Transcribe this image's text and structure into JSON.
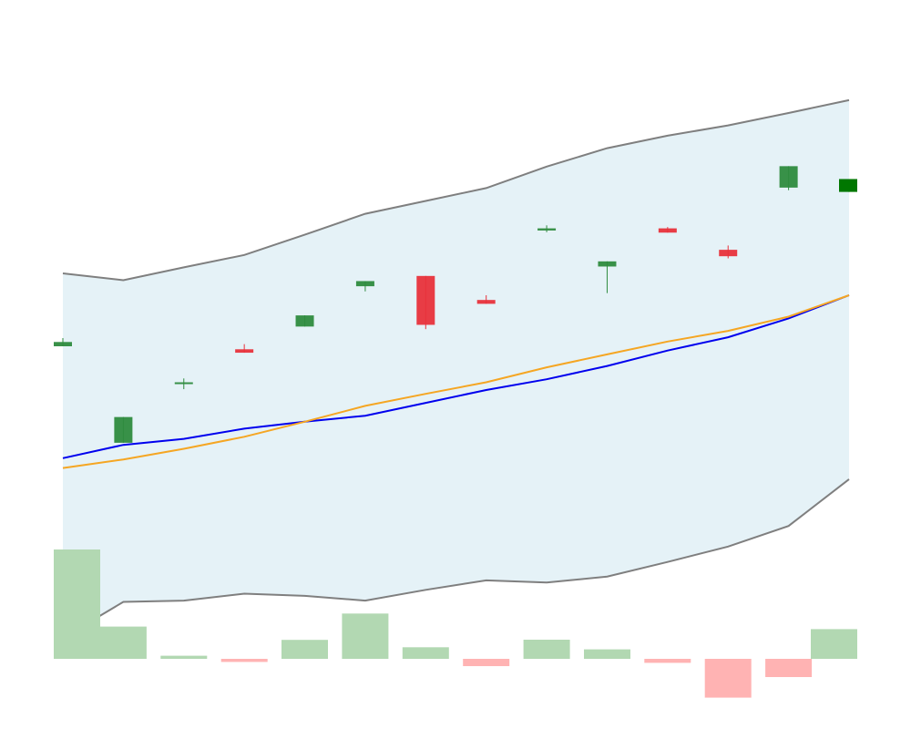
{
  "chart_data": [
    {
      "type": "candlestick",
      "title": "",
      "xlabel": "",
      "ylabel": "",
      "grid": false,
      "legend": "none",
      "x": [
        1,
        2,
        3,
        4,
        5,
        6,
        7,
        8,
        9,
        10,
        11,
        12,
        13,
        14
      ],
      "ylim": [
        15.5,
        100.5
      ],
      "candles": [
        {
          "open": 58.0,
          "high": 59.9,
          "close": 59.0,
          "low": 58.0
        },
        {
          "open": 35.5,
          "high": 41.5,
          "close": 41.5,
          "low": 35.5
        },
        {
          "open": 49.4,
          "high": 50.5,
          "close": 49.6,
          "low": 48.0
        },
        {
          "open": 57.3,
          "high": 58.5,
          "close": 56.5,
          "low": 56.5
        },
        {
          "open": 62.6,
          "high": 65.2,
          "close": 65.2,
          "low": 62.6
        },
        {
          "open": 72.0,
          "high": 73.2,
          "close": 73.2,
          "low": 70.8
        },
        {
          "open": 74.4,
          "high": 74.4,
          "close": 63.0,
          "low": 62.0
        },
        {
          "open": 68.8,
          "high": 69.9,
          "close": 67.9,
          "low": 67.9
        },
        {
          "open": 85.0,
          "high": 86.2,
          "close": 85.5,
          "low": 84.6
        },
        {
          "open": 76.6,
          "high": 77.8,
          "close": 77.8,
          "low": 70.4
        },
        {
          "open": 85.5,
          "high": 85.8,
          "close": 84.5,
          "low": 84.5
        },
        {
          "open": 80.5,
          "high": 81.5,
          "close": 79.0,
          "low": 78.5
        },
        {
          "open": 95.0,
          "high": 100.0,
          "close": 100.0,
          "low": 94.4
        },
        {
          "open": 94.0,
          "high": 97.0,
          "close": 97.0,
          "low": 94.0
        }
      ],
      "bands": {
        "upper": [
          75.0,
          73.4,
          76.4,
          79.3,
          84.0,
          88.9,
          91.9,
          94.9,
          99.9,
          104.2,
          107.1,
          109.5,
          112.4,
          115.4
        ],
        "lower": [
          -10.0,
          -1.6,
          -1.3,
          0.3,
          -0.2,
          -1.3,
          1.2,
          3.4,
          2.9,
          4.3,
          7.7,
          11.3,
          16.1,
          27.0
        ]
      },
      "series": [
        {
          "color": "#0000ee",
          "values": [
            31.9,
            35.0,
            36.4,
            38.8,
            40.4,
            41.8,
            44.8,
            47.8,
            50.3,
            53.4,
            57.0,
            60.1,
            64.5,
            69.9
          ]
        },
        {
          "color": "#f5a623",
          "values": [
            29.6,
            31.6,
            34.1,
            36.9,
            40.4,
            44.1,
            46.9,
            49.6,
            53.1,
            56.1,
            59.1,
            61.6,
            64.9,
            69.9
          ]
        }
      ],
      "colors": {
        "up": "#2e8b3e",
        "down": "#e8313b",
        "band_fill": "#add8e6",
        "band_line": "#7f7f7f",
        "last_candle": "#007700"
      }
    },
    {
      "type": "bar",
      "title": "",
      "xlabel": "",
      "ylabel": "",
      "grid": false,
      "x": [
        1,
        2,
        3,
        4,
        5,
        6,
        7,
        8,
        9,
        10,
        11,
        12,
        13,
        14
      ],
      "values": [
        100,
        29.5,
        2.8,
        -2.8,
        17.3,
        41.4,
        10.6,
        -6.7,
        17.5,
        8.7,
        -3.7,
        -35.5,
        -16.7,
        27.2
      ],
      "ylim": [
        -45,
        100
      ],
      "colors": {
        "positive": "#b2d8b2",
        "negative": "#ffb3b3"
      }
    }
  ]
}
